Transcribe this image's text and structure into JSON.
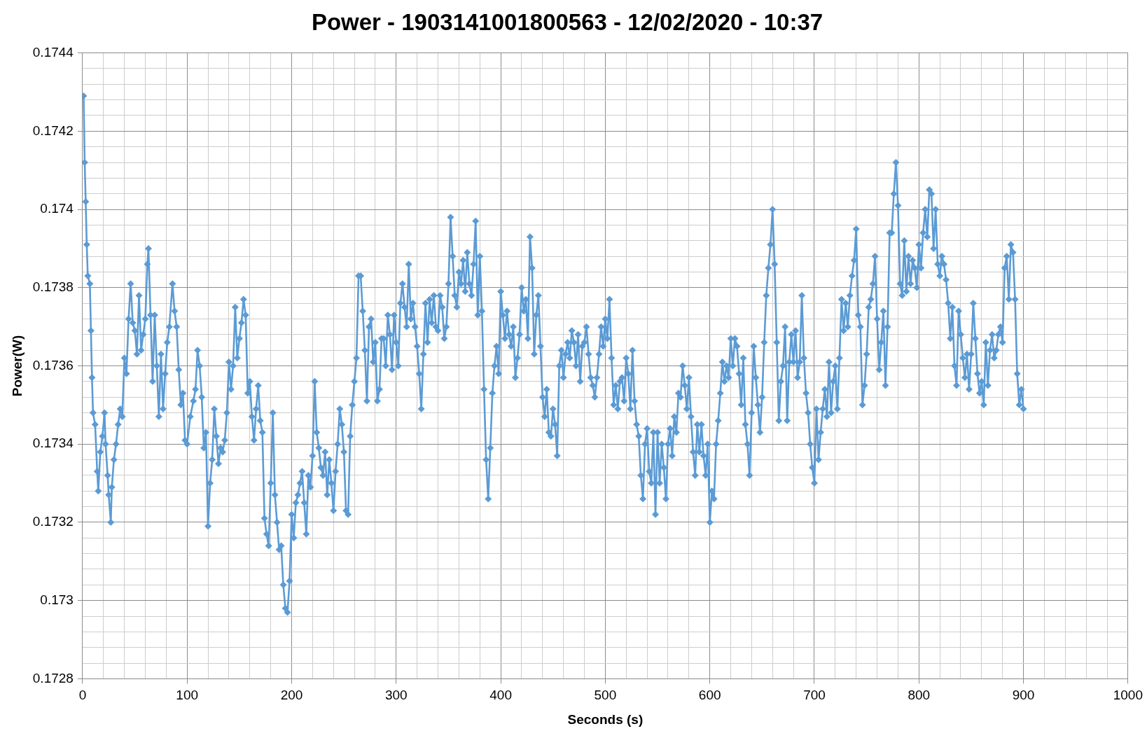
{
  "chart_data": {
    "type": "line",
    "title": "Power - 1903141001800563 - 12/02/2020 - 10:37",
    "xlabel": "Seconds (s)",
    "ylabel": "Power(W)",
    "color": "#5b9bd5",
    "marker": "diamond",
    "line_style": "solid",
    "grid": true,
    "xlim": [
      0,
      1000
    ],
    "xticks": [
      0,
      {
        "value": 20,
        "label": null
      },
      {
        "value": 40,
        "label": null
      },
      {
        "value": 60,
        "label": null
      },
      {
        "value": 80,
        "label": null
      },
      100,
      {
        "value": 120,
        "label": null
      },
      {
        "value": 140,
        "label": null
      },
      {
        "value": 160,
        "label": null
      },
      {
        "value": 180,
        "label": null
      },
      200,
      {
        "value": 220,
        "label": null
      },
      {
        "value": 240,
        "label": null
      },
      {
        "value": 260,
        "label": null
      },
      {
        "value": 280,
        "label": null
      },
      300,
      {
        "value": 320,
        "label": null
      },
      {
        "value": 340,
        "label": null
      },
      {
        "value": 360,
        "label": null
      },
      {
        "value": 380,
        "label": null
      },
      400,
      {
        "value": 420,
        "label": null
      },
      {
        "value": 440,
        "label": null
      },
      {
        "value": 460,
        "label": null
      },
      {
        "value": 480,
        "label": null
      },
      500,
      {
        "value": 520,
        "label": null
      },
      {
        "value": 540,
        "label": null
      },
      {
        "value": 560,
        "label": null
      },
      {
        "value": 580,
        "label": null
      },
      600,
      {
        "value": 620,
        "label": null
      },
      {
        "value": 640,
        "label": null
      },
      {
        "value": 660,
        "label": null
      },
      {
        "value": 680,
        "label": null
      },
      700,
      {
        "value": 720,
        "label": null
      },
      {
        "value": 740,
        "label": null
      },
      {
        "value": 760,
        "label": null
      },
      {
        "value": 780,
        "label": null
      },
      800,
      {
        "value": 820,
        "label": null
      },
      {
        "value": 840,
        "label": null
      },
      {
        "value": 860,
        "label": null
      },
      {
        "value": 880,
        "label": null
      },
      900,
      {
        "value": 920,
        "label": null
      },
      {
        "value": 940,
        "label": null
      },
      {
        "value": 960,
        "label": null
      },
      {
        "value": 980,
        "label": null
      },
      1000
    ],
    "ylim": [
      0.1728,
      0.1744
    ],
    "yticks": [
      0.1728,
      {
        "value": 0.17284,
        "label": null
      },
      {
        "value": 0.17288,
        "label": null
      },
      {
        "value": 0.17292,
        "label": null
      },
      {
        "value": 0.17296,
        "label": null
      },
      0.173,
      {
        "value": 0.17304,
        "label": null
      },
      {
        "value": 0.17308,
        "label": null
      },
      {
        "value": 0.17312,
        "label": null
      },
      {
        "value": 0.17316,
        "label": null
      },
      0.1732,
      {
        "value": 0.17324,
        "label": null
      },
      {
        "value": 0.17328,
        "label": null
      },
      {
        "value": 0.17332,
        "label": null
      },
      {
        "value": 0.17336,
        "label": null
      },
      0.1734,
      {
        "value": 0.17344,
        "label": null
      },
      {
        "value": 0.17348,
        "label": null
      },
      {
        "value": 0.17352,
        "label": null
      },
      {
        "value": 0.17356,
        "label": null
      },
      0.1736,
      {
        "value": 0.17364,
        "label": null
      },
      {
        "value": 0.17368,
        "label": null
      },
      {
        "value": 0.17372,
        "label": null
      },
      {
        "value": 0.17376,
        "label": null
      },
      0.1738,
      {
        "value": 0.17384,
        "label": null
      },
      {
        "value": 0.17388,
        "label": null
      },
      {
        "value": 0.17392,
        "label": null
      },
      {
        "value": 0.17396,
        "label": null
      },
      0.174,
      {
        "value": 0.17404,
        "label": null
      },
      {
        "value": 0.17408,
        "label": null
      },
      {
        "value": 0.17412,
        "label": null
      },
      {
        "value": 0.17416,
        "label": null
      },
      0.1742,
      {
        "value": 0.17424,
        "label": null
      },
      {
        "value": 0.17428,
        "label": null
      },
      {
        "value": 0.17432,
        "label": null
      },
      {
        "value": 0.17436,
        "label": null
      },
      0.1744
    ],
    "x": [
      1,
      2,
      3,
      4,
      5,
      7,
      8,
      9,
      10,
      12,
      14,
      15,
      17,
      19,
      21,
      22,
      24,
      25,
      27,
      28,
      30,
      32,
      34,
      36,
      38,
      40,
      42,
      44,
      46,
      48,
      50,
      52,
      54,
      56,
      58,
      60,
      62,
      63,
      65,
      67,
      69,
      71,
      73,
      75,
      77,
      79,
      81,
      83,
      86,
      88,
      90,
      92,
      94,
      96,
      98,
      100,
      103,
      106,
      108,
      110,
      112,
      114,
      116,
      118,
      120,
      122,
      124,
      126,
      128,
      130,
      132,
      134,
      136,
      138,
      140,
      142,
      144,
      146,
      148,
      150,
      152,
      154,
      156,
      158,
      160,
      162,
      164,
      166,
      168,
      170,
      172,
      174,
      176,
      178,
      180,
      182,
      184,
      186,
      188,
      190,
      192,
      194,
      196,
      198,
      200,
      202,
      204,
      206,
      208,
      210,
      212,
      214,
      216,
      218,
      220,
      222,
      224,
      226,
      228,
      230,
      232,
      234,
      236,
      238,
      240,
      242,
      244,
      246,
      248,
      250,
      252,
      254,
      256,
      258,
      260,
      262,
      264,
      266,
      268,
      270,
      272,
      274,
      276,
      278,
      280,
      282,
      284,
      286,
      288,
      290,
      292,
      294,
      296,
      298,
      300,
      302,
      304,
      306,
      308,
      310,
      312,
      314,
      316,
      318,
      320,
      322,
      324,
      326,
      328,
      330,
      332,
      334,
      336,
      338,
      340,
      342,
      344,
      346,
      348,
      350,
      352,
      354,
      356,
      358,
      360,
      362,
      364,
      366,
      368,
      370,
      372,
      374,
      376,
      378,
      380,
      382,
      384,
      386,
      388,
      390,
      392,
      394,
      396,
      398,
      400,
      402,
      404,
      406,
      408,
      410,
      412,
      414,
      416,
      418,
      420,
      422,
      424,
      426,
      428,
      430,
      432,
      434,
      436,
      438,
      440,
      442,
      444,
      446,
      448,
      450,
      452,
      454,
      456,
      458,
      460,
      462,
      464,
      466,
      468,
      470,
      472,
      474,
      476,
      478,
      480,
      482,
      484,
      486,
      488,
      490,
      492,
      494,
      496,
      498,
      500,
      502,
      504,
      506,
      508,
      510,
      512,
      514,
      516,
      518,
      520,
      522,
      524,
      526,
      528,
      530,
      532,
      534,
      536,
      538,
      540,
      542,
      544,
      546,
      548,
      550,
      552,
      554,
      556,
      558,
      560,
      562,
      564,
      566,
      568,
      570,
      572,
      574,
      576,
      578,
      580,
      582,
      584,
      586,
      588,
      590,
      592,
      594,
      596,
      598,
      600,
      602,
      604,
      606,
      608,
      610,
      612,
      614,
      616,
      618,
      620,
      622,
      624,
      626,
      628,
      630,
      632,
      634,
      636,
      638,
      640,
      642,
      644,
      646,
      648,
      650,
      652,
      654,
      656,
      658,
      660,
      662,
      664,
      666,
      668,
      670,
      672,
      674,
      676,
      678,
      680,
      682,
      684,
      686,
      688,
      690,
      692,
      694,
      696,
      698,
      700,
      702,
      704,
      706,
      708,
      710,
      712,
      714,
      716,
      718,
      720,
      722,
      724,
      726,
      728,
      730,
      732,
      734,
      736,
      738,
      740,
      742,
      744,
      746,
      748,
      750,
      752,
      754,
      756,
      758,
      760,
      762,
      764,
      766,
      768,
      770,
      772,
      774,
      776,
      778,
      780,
      782,
      784,
      786,
      788,
      790,
      792,
      794,
      796,
      798,
      800,
      802,
      804,
      806,
      808,
      810,
      812,
      814,
      816,
      818,
      820,
      822,
      824,
      826,
      828,
      830,
      832,
      834,
      836,
      838,
      840,
      842,
      844,
      846,
      848,
      850,
      852,
      854,
      856,
      858,
      860,
      862,
      864,
      866,
      868,
      870,
      872,
      874,
      876,
      878,
      880,
      882,
      884,
      886,
      888,
      890,
      892,
      894,
      896,
      898,
      900
    ],
    "values": [
      0.17429,
      0.17412,
      0.17402,
      0.17391,
      0.17383,
      0.17381,
      0.17369,
      0.17357,
      0.17348,
      0.17345,
      0.17333,
      0.17328,
      0.17338,
      0.17342,
      0.17348,
      0.1734,
      0.17332,
      0.17327,
      0.1732,
      0.17329,
      0.17336,
      0.1734,
      0.17345,
      0.17349,
      0.17347,
      0.17362,
      0.17358,
      0.17372,
      0.17381,
      0.17371,
      0.17369,
      0.17363,
      0.17378,
      0.17364,
      0.17368,
      0.17372,
      0.17386,
      0.1739,
      0.17373,
      0.17356,
      0.17373,
      0.1736,
      0.17347,
      0.17363,
      0.17349,
      0.17358,
      0.17366,
      0.1737,
      0.17381,
      0.17374,
      0.1737,
      0.17359,
      0.1735,
      0.17353,
      0.17341,
      0.1734,
      0.17347,
      0.17351,
      0.17354,
      0.17364,
      0.1736,
      0.17352,
      0.17339,
      0.17343,
      0.17319,
      0.1733,
      0.17336,
      0.17349,
      0.17342,
      0.17335,
      0.17339,
      0.17338,
      0.17341,
      0.17348,
      0.17361,
      0.17354,
      0.1736,
      0.17375,
      0.17362,
      0.17367,
      0.17371,
      0.17377,
      0.17373,
      0.17353,
      0.17356,
      0.17347,
      0.17341,
      0.17349,
      0.17355,
      0.17346,
      0.17343,
      0.17321,
      0.17317,
      0.17314,
      0.1733,
      0.17348,
      0.17327,
      0.1732,
      0.17313,
      0.17314,
      0.17304,
      0.17298,
      0.17297,
      0.17305,
      0.17322,
      0.17316,
      0.17325,
      0.17327,
      0.1733,
      0.17333,
      0.17325,
      0.17317,
      0.17332,
      0.17329,
      0.17337,
      0.17356,
      0.17343,
      0.17339,
      0.17334,
      0.17332,
      0.17338,
      0.17327,
      0.17336,
      0.1733,
      0.17323,
      0.17333,
      0.1734,
      0.17349,
      0.17345,
      0.17338,
      0.17323,
      0.17322,
      0.17342,
      0.1735,
      0.17356,
      0.17362,
      0.17383,
      0.17383,
      0.17374,
      0.17364,
      0.17351,
      0.1737,
      0.17372,
      0.17361,
      0.17366,
      0.17351,
      0.17354,
      0.17367,
      0.17367,
      0.1736,
      0.17373,
      0.17368,
      0.17359,
      0.17373,
      0.17366,
      0.1736,
      0.17376,
      0.17381,
      0.17375,
      0.1737,
      0.17386,
      0.17372,
      0.17376,
      0.1737,
      0.17365,
      0.17358,
      0.17349,
      0.17363,
      0.17376,
      0.17366,
      0.17377,
      0.17371,
      0.17378,
      0.1737,
      0.17369,
      0.17378,
      0.17375,
      0.17367,
      0.1737,
      0.17381,
      0.17398,
      0.17388,
      0.17378,
      0.17375,
      0.17384,
      0.17381,
      0.17387,
      0.17379,
      0.17389,
      0.17381,
      0.17378,
      0.17386,
      0.17397,
      0.17373,
      0.17388,
      0.17374,
      0.17354,
      0.17336,
      0.17326,
      0.17339,
      0.17353,
      0.1736,
      0.17365,
      0.17358,
      0.17379,
      0.17373,
      0.17367,
      0.17374,
      0.17368,
      0.17365,
      0.1737,
      0.17357,
      0.17362,
      0.17368,
      0.1738,
      0.17374,
      0.17377,
      0.17367,
      0.17393,
      0.17385,
      0.17363,
      0.17373,
      0.17378,
      0.17365,
      0.17352,
      0.17347,
      0.17354,
      0.17343,
      0.17342,
      0.17349,
      0.17345,
      0.17337,
      0.1736,
      0.17364,
      0.17357,
      0.17363,
      0.17366,
      0.17362,
      0.17369,
      0.17366,
      0.1736,
      0.17368,
      0.17356,
      0.17365,
      0.17366,
      0.1737,
      0.17363,
      0.17357,
      0.17355,
      0.17352,
      0.17357,
      0.17363,
      0.1737,
      0.17365,
      0.17372,
      0.17367,
      0.17377,
      0.17362,
      0.1735,
      0.17355,
      0.17349,
      0.17356,
      0.17357,
      0.17351,
      0.17362,
      0.17358,
      0.17349,
      0.17364,
      0.17351,
      0.17345,
      0.17342,
      0.17332,
      0.17326,
      0.1734,
      0.17344,
      0.17333,
      0.1733,
      0.17343,
      0.17322,
      0.17343,
      0.1733,
      0.1734,
      0.17334,
      0.17326,
      0.1734,
      0.17344,
      0.17337,
      0.17347,
      0.17343,
      0.17353,
      0.17352,
      0.1736,
      0.17355,
      0.17349,
      0.17357,
      0.17347,
      0.17338,
      0.17332,
      0.17345,
      0.17338,
      0.17345,
      0.17337,
      0.17332,
      0.1734,
      0.1732,
      0.17328,
      0.17326,
      0.1734,
      0.17346,
      0.17353,
      0.17361,
      0.17356,
      0.1736,
      0.17357,
      0.17367,
      0.1736,
      0.17367,
      0.17365,
      0.17358,
      0.1735,
      0.17362,
      0.17345,
      0.1734,
      0.17332,
      0.17348,
      0.17365,
      0.17357,
      0.1735,
      0.17343,
      0.17352,
      0.17366,
      0.17378,
      0.17385,
      0.17391,
      0.174,
      0.17386,
      0.17366,
      0.17346,
      0.17356,
      0.1736,
      0.1737,
      0.17346,
      0.17361,
      0.17368,
      0.17361,
      0.17369,
      0.17357,
      0.17361,
      0.17378,
      0.17362,
      0.17353,
      0.17348,
      0.1734,
      0.17334,
      0.1733,
      0.17349,
      0.17336,
      0.17343,
      0.17349,
      0.17354,
      0.17347,
      0.17361,
      0.17348,
      0.17356,
      0.1736,
      0.17349,
      0.17362,
      0.17377,
      0.17369,
      0.17376,
      0.1737,
      0.17378,
      0.17383,
      0.17387,
      0.17395,
      0.17373,
      0.1737,
      0.1735,
      0.17355,
      0.17363,
      0.17375,
      0.17377,
      0.17381,
      0.17388,
      0.17372,
      0.17359,
      0.17366,
      0.17374,
      0.17355,
      0.1737,
      0.17394,
      0.17394,
      0.17404,
      0.17412,
      0.17401,
      0.17381,
      0.17378,
      0.17392,
      0.17379,
      0.17388,
      0.17381,
      0.17387,
      0.17385,
      0.1738,
      0.17391,
      0.17385,
      0.17394,
      0.174,
      0.17393,
      0.17405,
      0.17404,
      0.1739,
      0.174,
      0.17386,
      0.17383,
      0.17388,
      0.17386,
      0.17382,
      0.17376,
      0.17367,
      0.17375,
      0.1736,
      0.17355,
      0.17374,
      0.17368,
      0.17362,
      0.17357,
      0.17363,
      0.17354,
      0.17363,
      0.17376,
      0.17367,
      0.17358,
      0.17353,
      0.17356,
      0.1735,
      0.17366,
      0.17355,
      0.17364,
      0.17368,
      0.17362,
      0.17364,
      0.17368,
      0.1737,
      0.17366,
      0.17385,
      0.17388,
      0.17377,
      0.17391,
      0.17389,
      0.17377,
      0.17358,
      0.1735,
      0.17354,
      0.17349
    ]
  }
}
